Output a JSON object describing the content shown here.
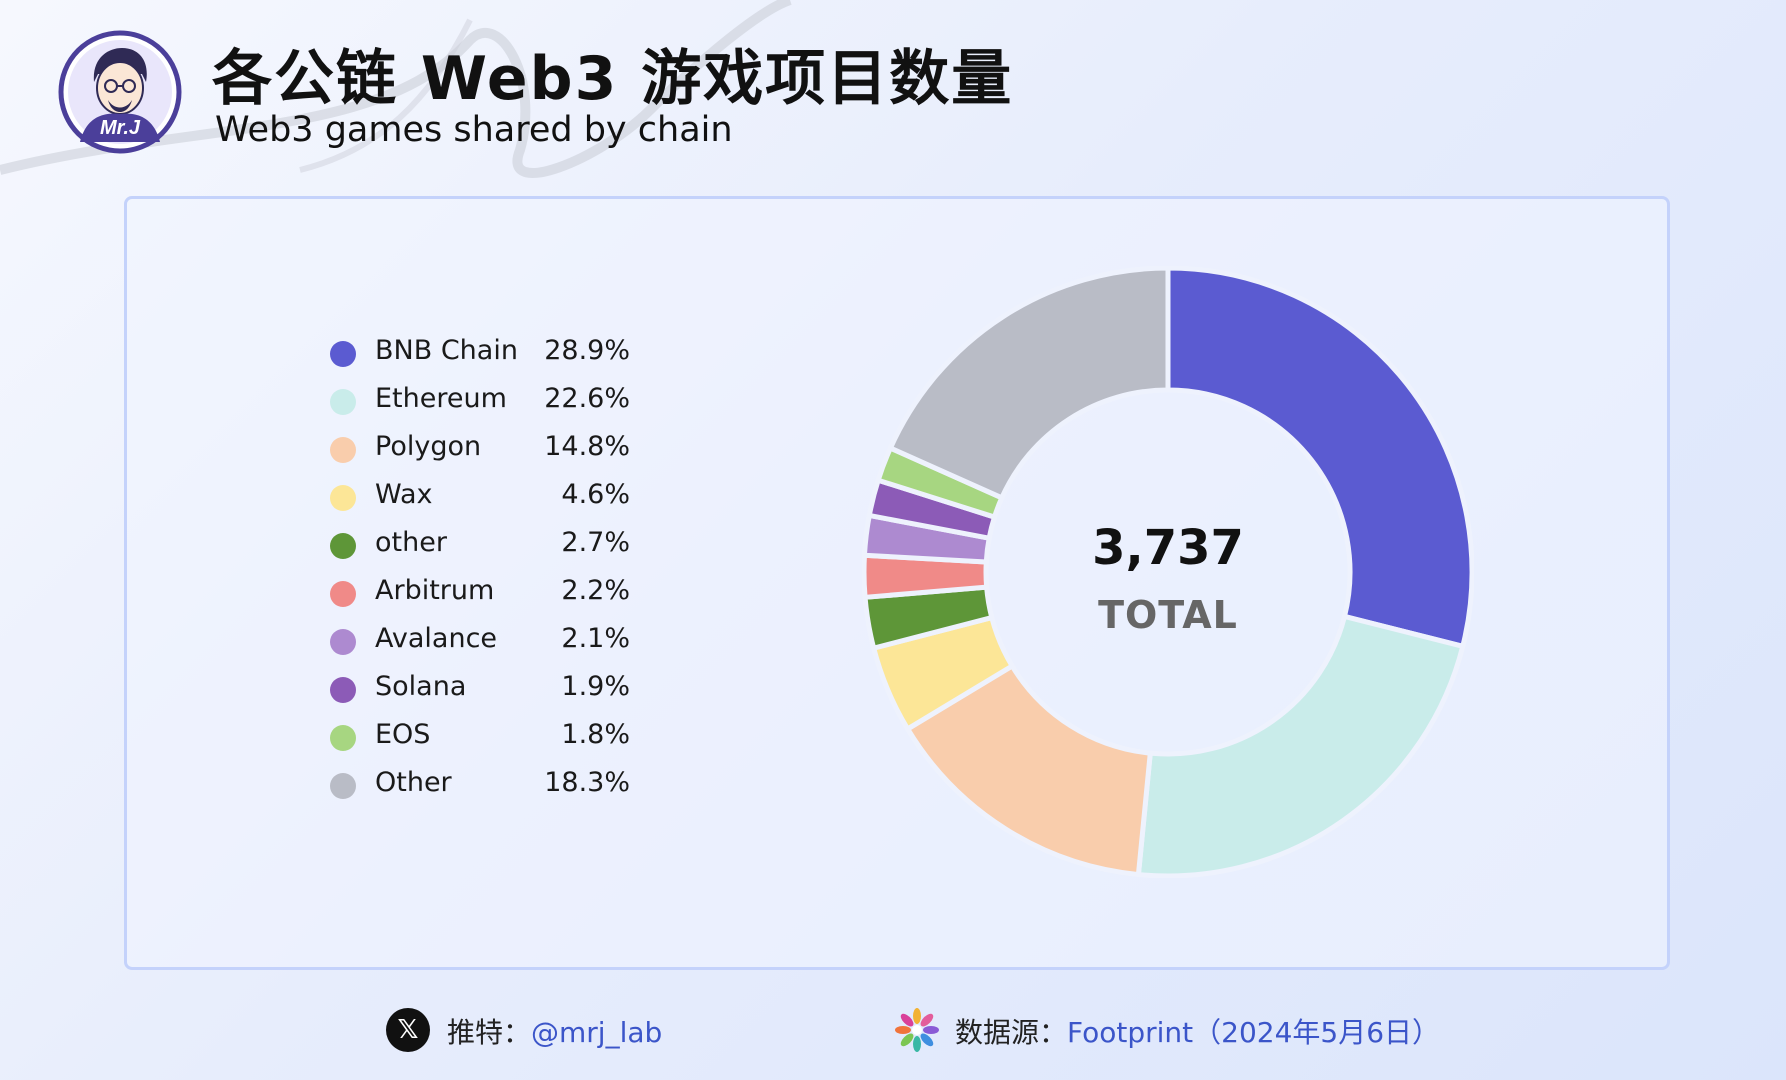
{
  "header": {
    "title": "各公链 Web3 游戏项目数量",
    "subtitle": "Web3 games shared by chain",
    "avatar_text": "Mr.J"
  },
  "chart_data": {
    "type": "pie",
    "donut": true,
    "categories": [
      "BNB Chain",
      "Ethereum",
      "Polygon",
      "Wax",
      "other",
      "Arbitrum",
      "Avalance",
      "Solana",
      "EOS",
      "Other"
    ],
    "values": [
      28.9,
      22.6,
      14.8,
      4.6,
      2.7,
      2.2,
      2.1,
      1.9,
      1.8,
      18.3
    ],
    "labels": [
      "28.9%",
      "22.6%",
      "14.8%",
      "4.6%",
      "2.7%",
      "2.2%",
      "2.1%",
      "1.9%",
      "1.8%",
      "18.3%"
    ],
    "colors": [
      "#5b5bd1",
      "#c9ecea",
      "#f9cdac",
      "#fce697",
      "#5e9638",
      "#f08a88",
      "#ad8ad0",
      "#8c5bb7",
      "#a7d681",
      "#b9bcc6"
    ],
    "total": "3,737",
    "total_label": "TOTAL",
    "legend_position": "left"
  },
  "footer": {
    "twitter_label": "推特：",
    "twitter_handle": "@mrj_lab",
    "source_label": "数据源：",
    "source_value": "Footprint（2024年5月6日）"
  }
}
